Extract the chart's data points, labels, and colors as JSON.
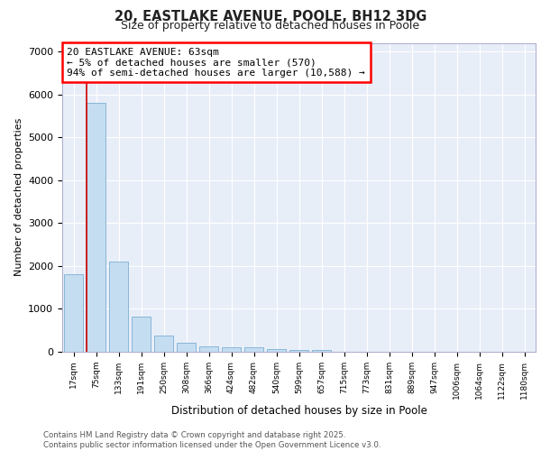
{
  "title_line1": "20, EASTLAKE AVENUE, POOLE, BH12 3DG",
  "title_line2": "Size of property relative to detached houses in Poole",
  "xlabel": "Distribution of detached houses by size in Poole",
  "ylabel": "Number of detached properties",
  "categories": [
    "17sqm",
    "75sqm",
    "133sqm",
    "191sqm",
    "250sqm",
    "308sqm",
    "366sqm",
    "424sqm",
    "482sqm",
    "540sqm",
    "599sqm",
    "657sqm",
    "715sqm",
    "773sqm",
    "831sqm",
    "889sqm",
    "947sqm",
    "1006sqm",
    "1064sqm",
    "1122sqm",
    "1180sqm"
  ],
  "values": [
    1800,
    5800,
    2100,
    820,
    370,
    210,
    120,
    110,
    95,
    70,
    50,
    50,
    0,
    0,
    0,
    0,
    0,
    0,
    0,
    0,
    0
  ],
  "bar_color": "#c5ddf0",
  "bar_edge_color": "#7ab0d4",
  "plot_bg_color": "#e8eef8",
  "fig_bg_color": "#ffffff",
  "grid_color": "#ffffff",
  "annotation_text": "20 EASTLAKE AVENUE: 63sqm\n← 5% of detached houses are smaller (570)\n94% of semi-detached houses are larger (10,588) →",
  "vline_color": "#cc0000",
  "ylim": [
    0,
    7200
  ],
  "yticks": [
    0,
    1000,
    2000,
    3000,
    4000,
    5000,
    6000,
    7000
  ],
  "footer_line1": "Contains HM Land Registry data © Crown copyright and database right 2025.",
  "footer_line2": "Contains public sector information licensed under the Open Government Licence v3.0."
}
